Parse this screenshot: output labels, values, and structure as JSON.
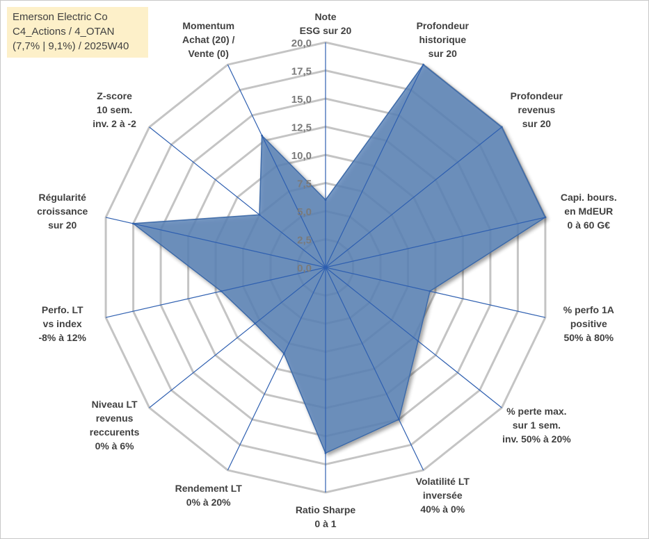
{
  "info_box": {
    "line1": "Emerson Electric Co",
    "line2": "C4_Actions / 4_OTAN",
    "line3": "(7,7% | 9,1%) / 2025W40"
  },
  "colors": {
    "fill": "#5b84b8",
    "stroke": "#3d6aa8",
    "grid": "#c4c4c4",
    "spoke": "#2e5fb0",
    "info_bg": "#fdf0c9"
  },
  "chart_data": {
    "type": "radar",
    "title": "Emerson Electric Co",
    "r_min": 0,
    "r_max": 20,
    "ticks": [
      "0,0",
      "2,5",
      "5,0",
      "7,5",
      "10,0",
      "12,5",
      "15,0",
      "17,5",
      "20,0"
    ],
    "axes": [
      {
        "label": [
          "Note",
          "ESG sur 20"
        ]
      },
      {
        "label": [
          "Profondeur",
          "historique",
          "sur 20"
        ]
      },
      {
        "label": [
          "Profondeur",
          "revenus",
          "sur 20"
        ]
      },
      {
        "label": [
          "Capi. bours.",
          "en MdEUR",
          "0 à 60 G€"
        ]
      },
      {
        "label": [
          "% perfo 1A",
          "positive",
          "50% à 80%"
        ]
      },
      {
        "label": [
          "% perte max.",
          "sur 1 sem.",
          "inv. 50% à 20%"
        ]
      },
      {
        "label": [
          "Volatilité LT",
          "inversée",
          "40% à 0%"
        ]
      },
      {
        "label": [
          "Ratio Sharpe",
          "0 à 1"
        ]
      },
      {
        "label": [
          "Rendement LT",
          "0% à 20%"
        ]
      },
      {
        "label": [
          "Niveau LT",
          "revenus",
          "reccurents",
          "0% à 6%"
        ]
      },
      {
        "label": [
          "Perfo. LT",
          "vs index",
          "-8% à 12%"
        ]
      },
      {
        "label": [
          "Régularité",
          "croissance",
          "sur 20"
        ]
      },
      {
        "label": [
          "Z-score",
          "10 sem.",
          "inv. 2 à -2"
        ]
      },
      {
        "label": [
          "Momentum",
          "Achat (20) /",
          "Vente (0)"
        ]
      }
    ],
    "series": [
      {
        "name": "Emerson Electric Co",
        "values": [
          6.0,
          20.0,
          20.0,
          20.0,
          9.5,
          10.5,
          15.0,
          16.5,
          8.5,
          8.0,
          9.5,
          17.5,
          7.5,
          13.0
        ]
      }
    ]
  }
}
